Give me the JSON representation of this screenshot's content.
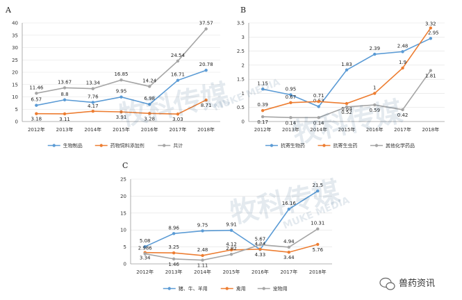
{
  "chart_data": [
    {
      "panel": "A",
      "type": "line",
      "categories": [
        "2012年",
        "2013年",
        "2014年",
        "2015年",
        "2016年",
        "2017年",
        "2018年"
      ],
      "ylim": [
        0,
        40
      ],
      "yticks": [
        "0",
        "5",
        "10",
        "15",
        "20",
        "25",
        "30",
        "35",
        "40"
      ],
      "grid": true,
      "legend": "bottom",
      "series": [
        {
          "name": "生物制品",
          "color": "#5b9bd5",
          "values": [
            6.57,
            8.8,
            7.76,
            9.95,
            6.98,
            16.71,
            20.78
          ],
          "labels": [
            "6.57",
            "8.8",
            "7.76",
            "9.95",
            "6.98",
            "16.71",
            "20.78"
          ]
        },
        {
          "name": "药物饲料添加剂",
          "color": "#ed7d31",
          "values": [
            3.18,
            3.11,
            4.17,
            3.91,
            3.28,
            3.03,
            8.71
          ],
          "labels": [
            "3.18",
            "3.11",
            "4.17",
            "3.91",
            "3.28",
            "3.03",
            "8.71"
          ]
        },
        {
          "name": "共计",
          "color": "#a5a5a5",
          "values": [
            11.46,
            13.67,
            13.34,
            16.85,
            14.24,
            24.54,
            37.57
          ],
          "labels": [
            "11.46",
            "13.67",
            "13.34",
            "16.85",
            "14.24",
            "24.54",
            "37.57"
          ]
        }
      ]
    },
    {
      "panel": "B",
      "type": "line",
      "categories": [
        "2012年",
        "2013年",
        "2014年",
        "2015年",
        "2016年",
        "2017年",
        "2018年"
      ],
      "ylim": [
        0,
        3.5
      ],
      "yticks": [
        "0",
        "0.5",
        "1",
        "1.5",
        "2",
        "2.5",
        "3",
        "3.5"
      ],
      "grid": true,
      "legend": "bottom",
      "series": [
        {
          "name": "抗寄生物药",
          "color": "#5b9bd5",
          "values": [
            1.15,
            0.95,
            0.53,
            1.83,
            2.39,
            2.48,
            2.95
          ],
          "labels": [
            "1.15",
            "0.95",
            "0.53",
            "1.83",
            "2.39",
            "2.48",
            "2.95"
          ]
        },
        {
          "name": "抗寄生虫药",
          "color": "#ed7d31",
          "values": [
            0.39,
            0.67,
            0.71,
            0.64,
            1,
            1.9,
            3.32
          ],
          "labels": [
            "0.39",
            "0.67",
            "0.71",
            "0.64",
            "1",
            "1.9",
            "3.32"
          ]
        },
        {
          "name": "其他化学药品",
          "color": "#a5a5a5",
          "values": [
            0.17,
            0.14,
            0.14,
            0.52,
            0.59,
            0.42,
            1.81
          ],
          "labels": [
            "0.17",
            "0.14",
            "0.14",
            "0.52",
            "0.59",
            "0.42",
            "1.81"
          ]
        }
      ]
    },
    {
      "panel": "C",
      "type": "line",
      "categories": [
        "2012年",
        "2013年",
        "2014年",
        "2015年",
        "2016年",
        "2017年",
        "2018年"
      ],
      "ylim": [
        0,
        25
      ],
      "yticks": [
        "0",
        "5",
        "10",
        "15",
        "20",
        "25"
      ],
      "grid": true,
      "legend": "bottom",
      "series": [
        {
          "name": "猪、牛、羊用",
          "color": "#5b9bd5",
          "values": [
            5.08,
            8.96,
            9.75,
            9.91,
            4.24,
            16.16,
            21.5
          ],
          "labels": [
            "5.08",
            "8.96",
            "9.75",
            "9.91",
            "4.24",
            "16.16",
            "21.5"
          ]
        },
        {
          "name": "禽用",
          "color": "#ed7d31",
          "values": [
            3.34,
            3.25,
            2.48,
            4.12,
            4.33,
            3.44,
            5.76
          ],
          "labels": [
            "3.34",
            "3.25",
            "2.48",
            "4.12",
            "4.33",
            "3.44",
            "5.76"
          ]
        },
        {
          "name": "宠物用",
          "color": "#a5a5a5",
          "values": [
            2.986,
            1.46,
            1.11,
            2.82,
            5.67,
            4.94,
            10.31
          ],
          "labels": [
            "2.986",
            "1.46",
            "1.11",
            "2.82",
            "5.67",
            "4.94",
            "10.31"
          ]
        }
      ]
    }
  ],
  "watermark": {
    "main": "牧科传媒",
    "sub": "MUKE MEDIA"
  },
  "footer": {
    "text": "兽药资讯"
  }
}
